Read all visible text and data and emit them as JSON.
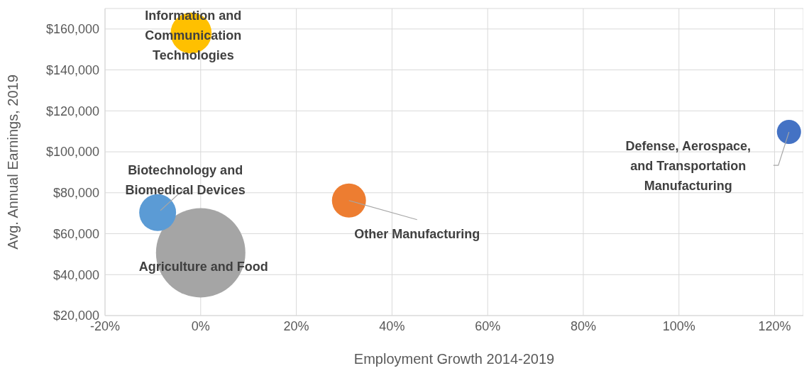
{
  "chart_data": {
    "type": "bubble",
    "xlabel": "Employment Growth 2014-2019",
    "ylabel": "Avg. Annual Earnings, 2019",
    "series": [
      {
        "name": "Agriculture and Food",
        "color": "#a5a5a5",
        "x": [
          0
        ],
        "values": [
          50700
        ],
        "sizes": [
          1
        ]
      },
      {
        "name": "Information and Communication Technologies",
        "color": "#ffc000",
        "x": [
          -2
        ],
        "values": [
          158000
        ],
        "sizes": [
          0.21
        ]
      },
      {
        "name": "Biotechnology and Biomedical Devices",
        "color": "#5b9bd5",
        "x": [
          -9
        ],
        "values": [
          70300
        ],
        "sizes": [
          0.17
        ]
      },
      {
        "name": "Other Manufacturing",
        "color": "#ed7d31",
        "x": [
          31
        ],
        "values": [
          76200
        ],
        "sizes": [
          0.145
        ]
      },
      {
        "name": "Defense, Aerospace, and Transportation Manufacturing",
        "color": "#4472c4",
        "x": [
          123
        ],
        "values": [
          109700
        ],
        "sizes": [
          0.073
        ]
      }
    ],
    "xlim": [
      -20,
      126
    ],
    "xticks": [
      {
        "value": -20,
        "label": "-20%"
      },
      {
        "value": 0,
        "label": "0%"
      },
      {
        "value": 20,
        "label": "20%"
      },
      {
        "value": 40,
        "label": "40%"
      },
      {
        "value": 60,
        "label": "60%"
      },
      {
        "value": 80,
        "label": "80%"
      },
      {
        "value": 100,
        "label": "100%"
      },
      {
        "value": 120,
        "label": "120%"
      }
    ],
    "ylim": [
      20000,
      170000
    ],
    "yticks": [
      {
        "value": 20000,
        "label": "$20,000"
      },
      {
        "value": 40000,
        "label": "$40,000"
      },
      {
        "value": 60000,
        "label": "$60,000"
      },
      {
        "value": 80000,
        "label": "$80,000"
      },
      {
        "value": 100000,
        "label": "$100,000"
      },
      {
        "value": 120000,
        "label": "$120,000"
      },
      {
        "value": 140000,
        "label": "$140,000"
      },
      {
        "value": 160000,
        "label": "$160,000"
      }
    ],
    "grid": true,
    "legend": false
  }
}
